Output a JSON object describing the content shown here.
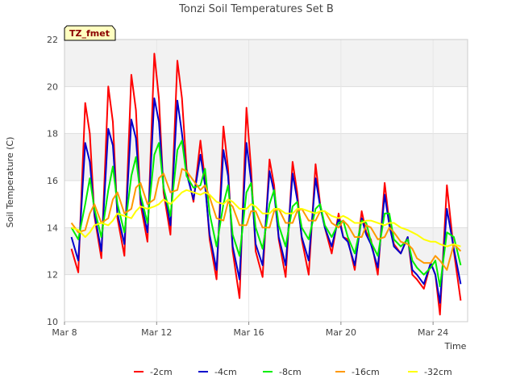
{
  "chart_data": {
    "type": "line",
    "title": "Tonzi Soil Temperatures Set B",
    "xlabel": "Time",
    "ylabel": "Soil Temperature (C)",
    "badge": "TZ_fmet",
    "x_range": [
      "Mar 8",
      "Mar 25.5"
    ],
    "ylim": [
      10,
      22
    ],
    "y_ticks": [
      10,
      12,
      14,
      16,
      18,
      20,
      22
    ],
    "x_ticks": [
      {
        "label": "Mar 8",
        "day": 8
      },
      {
        "label": "Mar 12",
        "day": 12
      },
      {
        "label": "Mar 16",
        "day": 16
      },
      {
        "label": "Mar 20",
        "day": 20
      },
      {
        "label": "Mar 24",
        "day": 24
      }
    ],
    "grid": true,
    "legend": "bottom",
    "series": [
      {
        "name": "-2cm",
        "color": "#ff0000",
        "x": [
          8.3,
          8.6,
          8.9,
          9.1,
          9.3,
          9.6,
          9.9,
          10.1,
          10.3,
          10.6,
          10.9,
          11.1,
          11.3,
          11.6,
          11.9,
          12.1,
          12.3,
          12.6,
          12.9,
          13.1,
          13.3,
          13.6,
          13.9,
          14.1,
          14.3,
          14.6,
          14.9,
          15.1,
          15.3,
          15.6,
          15.9,
          16.1,
          16.3,
          16.6,
          16.9,
          17.1,
          17.3,
          17.6,
          17.9,
          18.1,
          18.3,
          18.6,
          18.9,
          19.1,
          19.3,
          19.6,
          19.9,
          20.1,
          20.3,
          20.6,
          20.9,
          21.1,
          21.3,
          21.6,
          21.9,
          22.1,
          22.3,
          22.6,
          22.9,
          23.1,
          23.3,
          23.6,
          23.9,
          24.1,
          24.3,
          24.6,
          24.9,
          25.2
        ],
        "values": [
          13.1,
          12.1,
          19.3,
          18.0,
          14.5,
          12.7,
          20.0,
          18.5,
          14.4,
          12.8,
          20.5,
          19.0,
          15.0,
          13.4,
          21.4,
          19.5,
          15.5,
          13.7,
          21.1,
          19.5,
          16.5,
          15.1,
          17.7,
          16.0,
          13.5,
          11.8,
          18.3,
          16.5,
          13.0,
          11.0,
          19.1,
          16.5,
          13.0,
          11.9,
          16.9,
          15.8,
          13.5,
          11.9,
          16.8,
          15.5,
          13.5,
          12.0,
          16.7,
          15.0,
          14.0,
          12.9,
          14.6,
          13.6,
          13.5,
          12.2,
          14.7,
          13.8,
          13.5,
          12.0,
          15.9,
          14.2,
          13.3,
          12.9,
          13.6,
          12.0,
          11.8,
          11.4,
          12.5,
          12.0,
          10.3,
          15.8,
          13.0,
          10.9
        ]
      },
      {
        "name": "-4cm",
        "color": "#0000cc",
        "x": [
          8.3,
          8.6,
          8.9,
          9.1,
          9.3,
          9.6,
          9.9,
          10.1,
          10.3,
          10.6,
          10.9,
          11.1,
          11.3,
          11.6,
          11.9,
          12.1,
          12.3,
          12.6,
          12.9,
          13.1,
          13.3,
          13.6,
          13.9,
          14.1,
          14.3,
          14.6,
          14.9,
          15.1,
          15.3,
          15.6,
          15.9,
          16.1,
          16.3,
          16.6,
          16.9,
          17.1,
          17.3,
          17.6,
          17.9,
          18.1,
          18.3,
          18.6,
          18.9,
          19.1,
          19.3,
          19.6,
          19.9,
          20.1,
          20.3,
          20.6,
          20.9,
          21.1,
          21.3,
          21.6,
          21.9,
          22.1,
          22.3,
          22.6,
          22.9,
          23.1,
          23.3,
          23.6,
          23.9,
          24.1,
          24.3,
          24.6,
          24.9,
          25.2
        ],
        "values": [
          13.6,
          12.6,
          17.6,
          16.8,
          14.6,
          13.0,
          18.2,
          17.5,
          14.6,
          13.3,
          18.6,
          17.8,
          15.2,
          13.8,
          19.5,
          18.5,
          15.7,
          14.1,
          19.4,
          18.0,
          16.3,
          15.2,
          17.1,
          15.8,
          13.7,
          12.2,
          17.3,
          16.2,
          13.2,
          11.8,
          17.6,
          16.0,
          13.3,
          12.4,
          16.4,
          15.5,
          13.6,
          12.4,
          16.3,
          15.2,
          13.6,
          12.6,
          16.1,
          14.9,
          14.0,
          13.2,
          14.4,
          13.6,
          13.4,
          12.4,
          14.4,
          13.7,
          13.3,
          12.3,
          15.4,
          14.1,
          13.2,
          12.9,
          13.6,
          12.2,
          12.0,
          11.6,
          12.5,
          12.0,
          10.8,
          14.8,
          13.1,
          11.6
        ]
      },
      {
        "name": "-8cm",
        "color": "#00ee00",
        "x": [
          8.3,
          8.6,
          8.9,
          9.1,
          9.3,
          9.6,
          9.9,
          10.1,
          10.3,
          10.6,
          10.9,
          11.1,
          11.3,
          11.6,
          11.9,
          12.1,
          12.3,
          12.6,
          12.9,
          13.1,
          13.3,
          13.6,
          13.9,
          14.1,
          14.3,
          14.6,
          14.9,
          15.1,
          15.3,
          15.6,
          15.9,
          16.1,
          16.3,
          16.6,
          16.9,
          17.1,
          17.3,
          17.6,
          17.9,
          18.1,
          18.3,
          18.6,
          18.9,
          19.1,
          19.3,
          19.6,
          19.9,
          20.1,
          20.3,
          20.6,
          20.9,
          21.1,
          21.3,
          21.6,
          21.9,
          22.1,
          22.3,
          22.6,
          22.9,
          23.1,
          23.3,
          23.6,
          23.9,
          24.1,
          24.3,
          24.6,
          24.9,
          25.2
        ],
        "values": [
          14.0,
          13.5,
          15.0,
          16.1,
          14.8,
          13.6,
          15.6,
          16.6,
          15.0,
          13.8,
          16.2,
          17.0,
          15.4,
          14.2,
          17.1,
          17.6,
          15.7,
          14.5,
          17.3,
          17.7,
          16.2,
          15.7,
          15.8,
          16.5,
          14.6,
          13.2,
          15.0,
          15.8,
          13.7,
          12.8,
          15.5,
          15.9,
          14.0,
          13.1,
          15.0,
          15.6,
          14.1,
          13.2,
          14.9,
          15.1,
          14.0,
          13.5,
          14.8,
          15.0,
          14.1,
          13.6,
          14.2,
          14.3,
          13.6,
          12.9,
          14.3,
          14.2,
          13.4,
          12.8,
          14.6,
          14.6,
          13.5,
          13.2,
          13.5,
          12.6,
          12.3,
          12.0,
          12.3,
          12.6,
          11.5,
          13.8,
          13.6,
          12.4
        ]
      },
      {
        "name": "-16cm",
        "color": "#ff9900",
        "x": [
          8.3,
          8.6,
          8.9,
          9.1,
          9.3,
          9.6,
          9.9,
          10.1,
          10.3,
          10.6,
          10.9,
          11.1,
          11.3,
          11.6,
          11.9,
          12.1,
          12.3,
          12.6,
          12.9,
          13.1,
          13.3,
          13.6,
          13.9,
          14.1,
          14.3,
          14.6,
          14.9,
          15.1,
          15.3,
          15.6,
          15.9,
          16.1,
          16.3,
          16.6,
          16.9,
          17.1,
          17.3,
          17.6,
          17.9,
          18.1,
          18.3,
          18.6,
          18.9,
          19.1,
          19.3,
          19.6,
          19.9,
          20.1,
          20.3,
          20.6,
          20.9,
          21.1,
          21.3,
          21.6,
          21.9,
          22.1,
          22.3,
          22.6,
          22.9,
          23.1,
          23.3,
          23.6,
          23.9,
          24.1,
          24.3,
          24.6,
          24.9,
          25.2
        ],
        "values": [
          14.2,
          13.8,
          13.9,
          14.6,
          15.0,
          14.2,
          14.4,
          15.2,
          15.5,
          14.6,
          14.8,
          15.7,
          15.9,
          15.0,
          15.2,
          16.1,
          16.3,
          15.5,
          15.6,
          16.5,
          16.4,
          16.0,
          15.6,
          15.8,
          15.3,
          14.4,
          14.3,
          15.1,
          14.9,
          14.1,
          14.1,
          14.7,
          14.7,
          14.0,
          14.0,
          14.7,
          14.8,
          14.2,
          14.2,
          14.7,
          14.8,
          14.3,
          14.3,
          14.7,
          14.7,
          14.2,
          14.0,
          14.3,
          14.1,
          13.6,
          13.6,
          14.1,
          14.0,
          13.5,
          13.6,
          14.0,
          13.8,
          13.4,
          13.3,
          13.1,
          12.7,
          12.5,
          12.5,
          12.8,
          12.6,
          12.2,
          13.3,
          13.0
        ]
      },
      {
        "name": "-32cm",
        "color": "#ffff00",
        "x": [
          8.3,
          8.6,
          8.9,
          9.1,
          9.3,
          9.6,
          9.9,
          10.1,
          10.3,
          10.6,
          10.9,
          11.1,
          11.3,
          11.6,
          11.9,
          12.1,
          12.3,
          12.6,
          12.9,
          13.1,
          13.3,
          13.6,
          13.9,
          14.1,
          14.3,
          14.6,
          14.9,
          15.1,
          15.3,
          15.6,
          15.9,
          16.1,
          16.3,
          16.6,
          16.9,
          17.1,
          17.3,
          17.6,
          17.9,
          18.1,
          18.3,
          18.6,
          18.9,
          19.1,
          19.3,
          19.6,
          19.9,
          20.1,
          20.3,
          20.6,
          20.9,
          21.1,
          21.3,
          21.6,
          21.9,
          22.1,
          22.3,
          22.6,
          22.9,
          23.1,
          23.3,
          23.6,
          23.9,
          24.1,
          24.3,
          24.6,
          24.9,
          25.2
        ],
        "values": [
          14.0,
          13.9,
          13.6,
          13.8,
          14.1,
          14.2,
          14.1,
          14.3,
          14.6,
          14.5,
          14.4,
          14.7,
          14.9,
          14.8,
          14.9,
          15.0,
          15.2,
          15.0,
          15.3,
          15.5,
          15.6,
          15.5,
          15.4,
          15.5,
          15.4,
          15.1,
          15.0,
          15.2,
          15.1,
          14.8,
          14.8,
          15.0,
          14.9,
          14.6,
          14.6,
          14.8,
          14.8,
          14.6,
          14.6,
          14.8,
          14.8,
          14.7,
          14.6,
          14.7,
          14.7,
          14.5,
          14.4,
          14.5,
          14.4,
          14.2,
          14.2,
          14.3,
          14.3,
          14.2,
          14.1,
          14.2,
          14.2,
          14.0,
          13.9,
          13.8,
          13.7,
          13.5,
          13.4,
          13.4,
          13.3,
          13.2,
          13.3,
          13.2
        ]
      }
    ]
  }
}
